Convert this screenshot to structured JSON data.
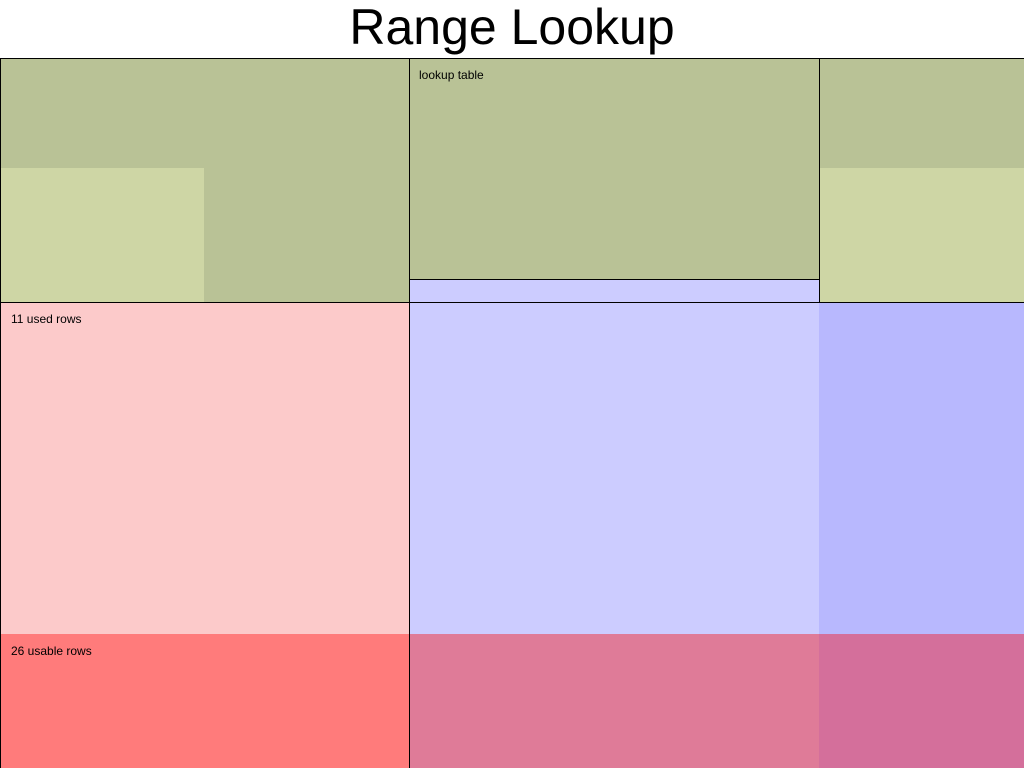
{
  "title": "Range Lookup",
  "labels": {
    "lookup_table": "lookup table",
    "used_rows": "11 used rows",
    "usable_rows": "26 usable rows"
  },
  "colors": {
    "olive_dark": "#b9c296",
    "olive_light": "#ced6a5",
    "lavender": "#ccccff",
    "lavender_dark": "#b8b8fe",
    "pink": "#fccaca",
    "red": "#ff7b7b",
    "rose": "#df7b98",
    "magenta": "#d46f9b"
  }
}
